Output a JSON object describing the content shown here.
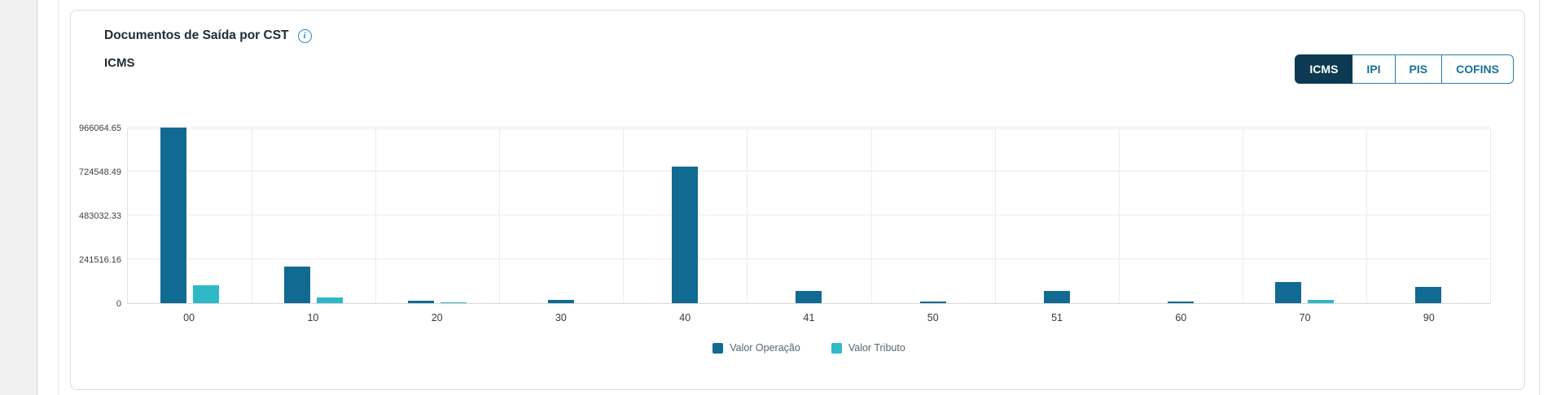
{
  "card": {
    "title": "Documentos de Saída por CST",
    "subtitle": "ICMS"
  },
  "info_icon": {
    "glyph": "i",
    "color": "#2e86c8"
  },
  "tabs": [
    {
      "label": "ICMS",
      "active": true
    },
    {
      "label": "IPI",
      "active": false
    },
    {
      "label": "PIS",
      "active": false
    },
    {
      "label": "COFINS",
      "active": false
    }
  ],
  "colors": {
    "tab_active_bg": "#0d3a52",
    "tab_text": "#186f99",
    "series_operacao": "#116a92",
    "series_tributo": "#2fb9c7",
    "gridline": "#ececec"
  },
  "chart_data": {
    "type": "bar",
    "title": "Documentos de Saída por CST",
    "subtitle": "ICMS",
    "xlabel": "",
    "ylabel": "",
    "categories": [
      "00",
      "10",
      "20",
      "30",
      "40",
      "41",
      "50",
      "51",
      "60",
      "70",
      "90"
    ],
    "series": [
      {
        "name": "Valor Operação",
        "color": "#116a92",
        "values": [
          966064.65,
          203000,
          13400,
          17300,
          751200,
          68200,
          9200,
          68400,
          10100,
          117800,
          88300
        ]
      },
      {
        "name": "Valor Tributo",
        "color": "#2fb9c7",
        "values": [
          98300,
          31200,
          6100,
          0,
          0,
          0,
          0,
          0,
          0,
          17200,
          0
        ]
      }
    ],
    "ylim": [
      0,
      966064.65
    ],
    "yticks": [
      {
        "label": "0",
        "value": 0
      },
      {
        "label": "241516.16",
        "value": 241516.16
      },
      {
        "label": "483032.33",
        "value": 483032.33
      },
      {
        "label": "724548.49",
        "value": 724548.49
      },
      {
        "label": "966064.65",
        "value": 966064.65
      }
    ],
    "grid": true,
    "legend_position": "bottom"
  }
}
